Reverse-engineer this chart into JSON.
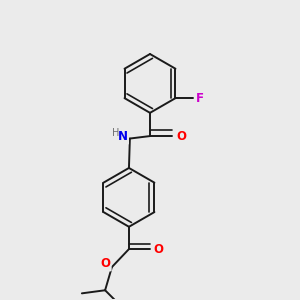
{
  "background_color": "#ebebeb",
  "bond_color": "#1a1a1a",
  "bond_width": 1.4,
  "atom_colors": {
    "F": "#cc00cc",
    "O": "#ff0000",
    "N": "#0000ee",
    "H": "#707070",
    "C": "#1a1a1a"
  },
  "font_size_large": 8.5,
  "font_size_small": 7.0,
  "fig_width": 3.0,
  "fig_height": 3.0,
  "dpi": 100
}
